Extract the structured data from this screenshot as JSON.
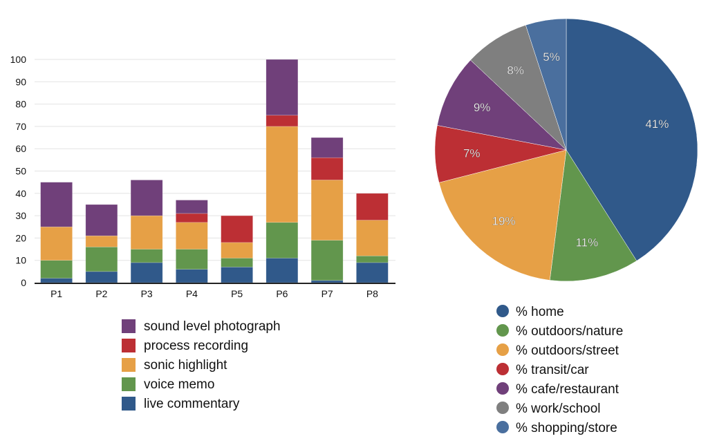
{
  "chart_data": [
    {
      "type": "bar",
      "stacked": true,
      "categories": [
        "P1",
        "P2",
        "P3",
        "P4",
        "P5",
        "P6",
        "P7",
        "P8"
      ],
      "ylim": [
        0,
        100
      ],
      "yticks": [
        0,
        10,
        20,
        30,
        40,
        50,
        60,
        70,
        80,
        90,
        100
      ],
      "grid": true,
      "legend_position": "bottom",
      "series": [
        {
          "name": "live commentary",
          "color": "#30598a",
          "values": [
            2,
            5,
            9,
            6,
            7,
            11,
            1,
            9
          ]
        },
        {
          "name": "voice memo",
          "color": "#62964d",
          "values": [
            8,
            11,
            6,
            9,
            4,
            16,
            18,
            3
          ]
        },
        {
          "name": "sonic highlight",
          "color": "#e6a046",
          "values": [
            15,
            5,
            15,
            12,
            7,
            43,
            27,
            16
          ]
        },
        {
          "name": "process recording",
          "color": "#bc2f34",
          "values": [
            0,
            0,
            0,
            4,
            12,
            5,
            10,
            12
          ]
        },
        {
          "name": "sound level photograph",
          "color": "#70407a",
          "values": [
            20,
            14,
            16,
            6,
            0,
            25,
            9,
            0
          ]
        }
      ]
    },
    {
      "type": "pie",
      "legend_position": "bottom",
      "slices": [
        {
          "label": "% home",
          "value": 41,
          "text": "41%",
          "color": "#30598a"
        },
        {
          "label": "% outdoors/nature",
          "value": 11,
          "text": "11%",
          "color": "#62964d"
        },
        {
          "label": "% outdoors/street",
          "value": 19,
          "text": "19%",
          "color": "#e6a046"
        },
        {
          "label": "% transit/car",
          "value": 7,
          "text": "7%",
          "color": "#bc2f34"
        },
        {
          "label": "% cafe/restaurant",
          "value": 9,
          "text": "9%",
          "color": "#70407a"
        },
        {
          "label": "% work/school",
          "value": 8,
          "text": "8%",
          "color": "#7f7f7f"
        },
        {
          "label": "% shopping/store",
          "value": 5,
          "text": "5%",
          "color": "#4a6f9e"
        }
      ]
    }
  ]
}
